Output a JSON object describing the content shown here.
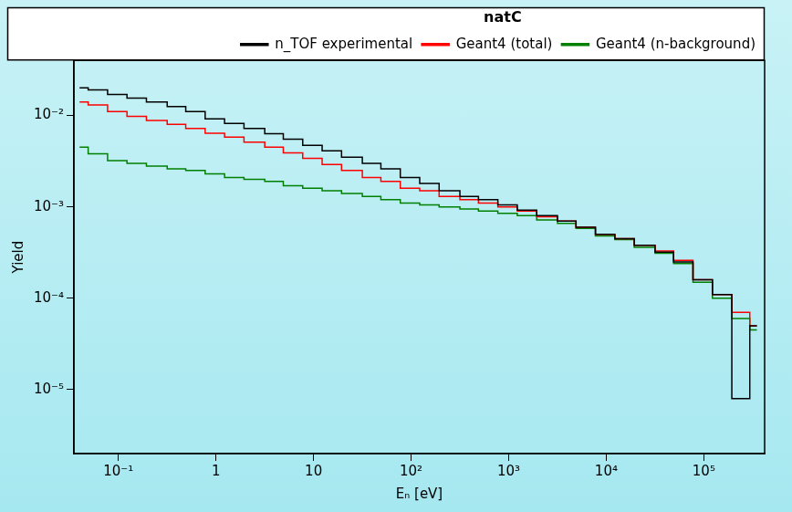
{
  "chart_data": {
    "type": "line",
    "log": true,
    "grid": false,
    "legend": "top right",
    "line_style": "steps",
    "legend_title": "natC",
    "x_label": "Eₙ [eV]",
    "y_label": "Yield",
    "xlim": [
      0.035,
      420000
    ],
    "ylim": [
      2e-06,
      0.04
    ],
    "xticks": [
      {
        "value": 0.1,
        "label": "10⁻¹"
      },
      1,
      10,
      {
        "value": 100,
        "label": "10²"
      },
      {
        "value": 1000,
        "label": "10³"
      },
      {
        "value": 10000,
        "label": "10⁴"
      },
      {
        "value": 100000,
        "label": "10⁵"
      }
    ],
    "yticks": [
      {
        "value": 1e-05,
        "label": "10⁻⁵"
      },
      {
        "value": 0.0001,
        "label": "10⁻⁴"
      },
      {
        "value": 0.001,
        "label": "10⁻³"
      },
      {
        "value": 0.01,
        "label": "10⁻²"
      }
    ],
    "x": [
      0.04,
      0.06,
      0.1,
      0.15,
      0.25,
      0.4,
      0.6,
      1,
      1.5,
      2.5,
      4,
      6,
      10,
      15,
      25,
      40,
      60,
      100,
      150,
      250,
      400,
      600,
      1000,
      1500,
      2500,
      4000,
      6000,
      10000,
      15000,
      25000,
      40000,
      60000,
      100000,
      150000,
      250000,
      350000
    ],
    "series": [
      {
        "name": "n_TOF experimental",
        "color": "#000000",
        "values": [
          0.02,
          0.019,
          0.017,
          0.0155,
          0.014,
          0.0125,
          0.011,
          0.0092,
          0.0082,
          0.0072,
          0.0063,
          0.0055,
          0.0047,
          0.0041,
          0.0035,
          0.003,
          0.0026,
          0.0021,
          0.0018,
          0.0015,
          0.0013,
          0.0012,
          0.00105,
          0.00092,
          0.0008,
          0.0007,
          0.0006,
          0.0005,
          0.00045,
          0.00038,
          0.00032,
          0.00025,
          0.00016,
          0.00011,
          8e-06,
          5e-05
        ]
      },
      {
        "name": "Geant4 (total)",
        "color": "#ff0000",
        "values": [
          0.014,
          0.013,
          0.011,
          0.0098,
          0.0088,
          0.008,
          0.0072,
          0.0064,
          0.0058,
          0.0051,
          0.0045,
          0.0039,
          0.0034,
          0.0029,
          0.0025,
          0.0021,
          0.0019,
          0.0016,
          0.0015,
          0.0013,
          0.0012,
          0.0011,
          0.001,
          0.0009,
          0.00078,
          0.0007,
          0.0006,
          0.0005,
          0.00045,
          0.00038,
          0.00033,
          0.00026,
          0.00016,
          0.00011,
          7e-05,
          5e-05
        ]
      },
      {
        "name": "Geant4 (n-background)",
        "color": "#008000",
        "values": [
          0.0045,
          0.0038,
          0.0032,
          0.003,
          0.0028,
          0.0026,
          0.0025,
          0.0023,
          0.0021,
          0.002,
          0.0019,
          0.0017,
          0.0016,
          0.0015,
          0.0014,
          0.0013,
          0.0012,
          0.0011,
          0.00105,
          0.001,
          0.00095,
          0.0009,
          0.00085,
          0.0008,
          0.00072,
          0.00066,
          0.00058,
          0.00048,
          0.00044,
          0.00036,
          0.00031,
          0.00024,
          0.00015,
          0.0001,
          6e-05,
          4.5e-05
        ]
      }
    ]
  }
}
